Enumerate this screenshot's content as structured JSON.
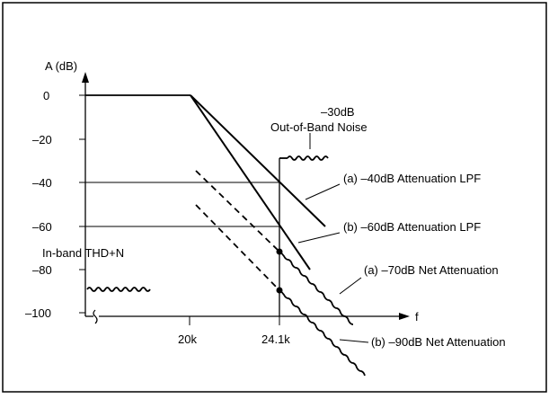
{
  "axes": {
    "y_title": "A (dB)",
    "x_title": "f",
    "y_ticks": [
      "0",
      "–20",
      "–40",
      "–60",
      "–80",
      "–100"
    ],
    "x_ticks": [
      "20k",
      "24.1k"
    ]
  },
  "labels": {
    "noise_level": "–30dB",
    "noise_name": "Out-of-Band Noise",
    "lpf_a": "(a) –40dB Attenuation LPF",
    "lpf_b": "(b) –60dB Attenuation LPF",
    "inband": "In-band THD+N",
    "net_a": "(a) –70dB Net Attenuation",
    "net_b": "(b) –90dB Net Attenuation"
  }
}
